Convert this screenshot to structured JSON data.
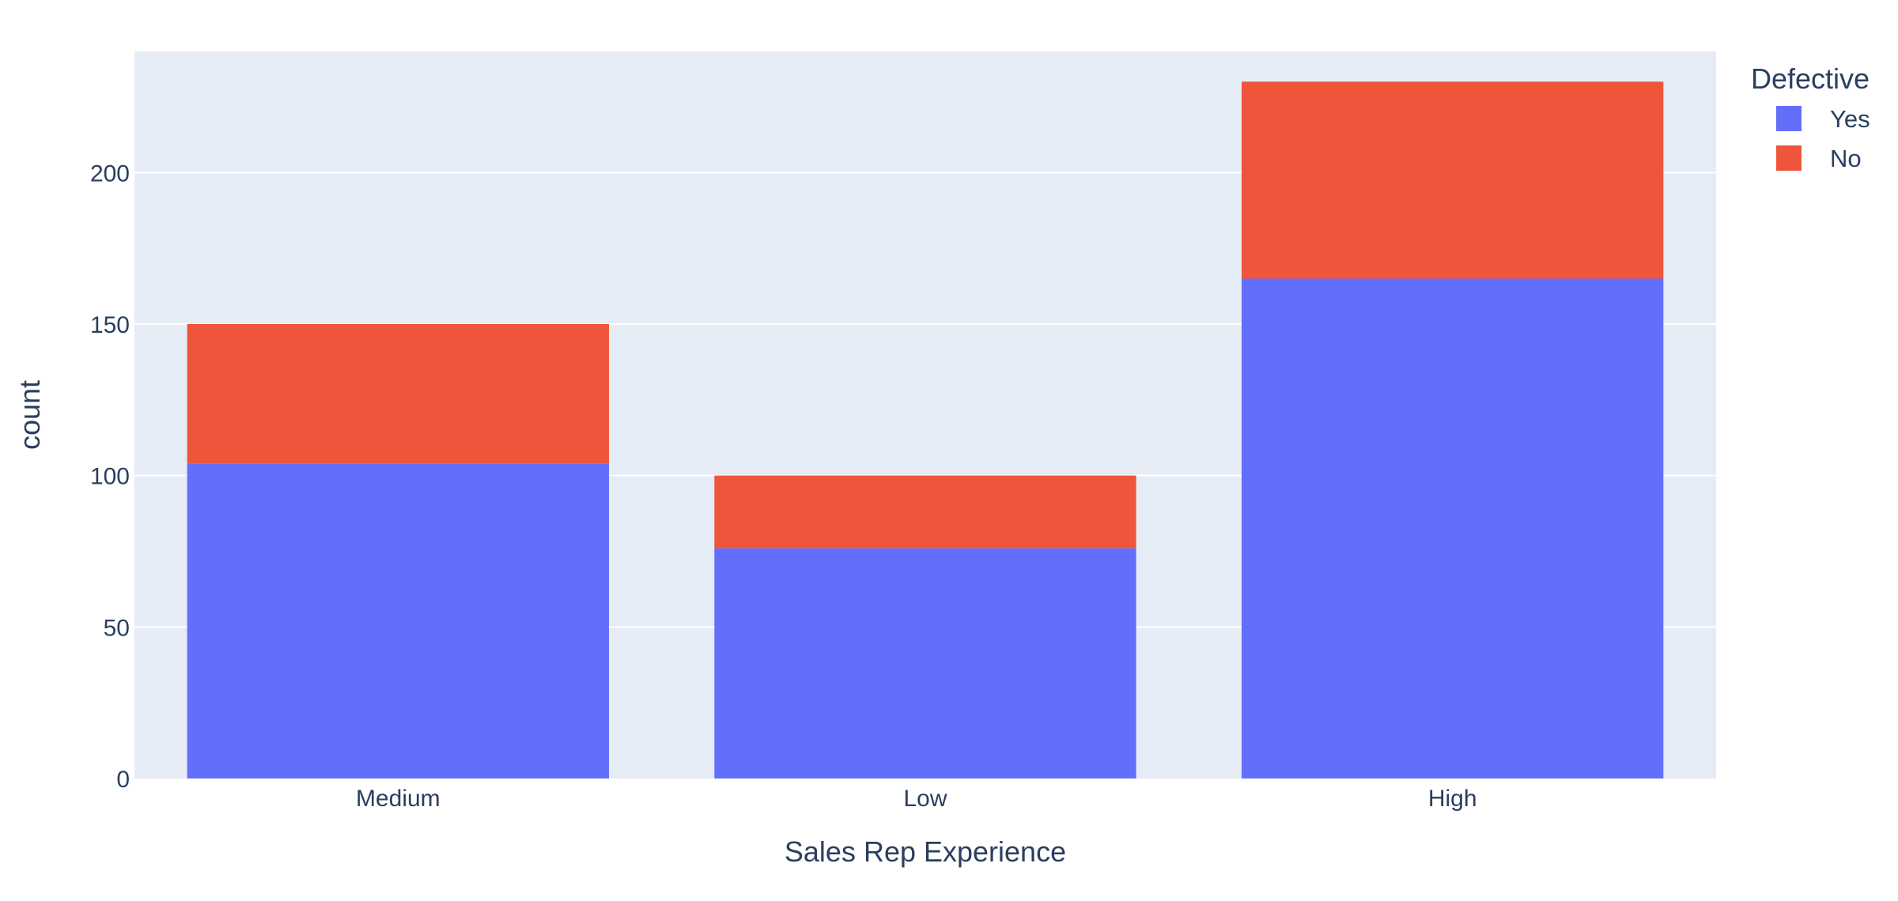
{
  "chart_data": {
    "type": "bar",
    "barmode": "stack",
    "categories": [
      "Medium",
      "Low",
      "High"
    ],
    "series": [
      {
        "name": "Yes",
        "values": [
          104,
          76,
          165
        ],
        "color": "#636efa"
      },
      {
        "name": "No",
        "values": [
          46,
          24,
          65
        ],
        "color": "#ef553b"
      }
    ],
    "xlabel": "Sales Rep Experience",
    "ylabel": "count",
    "ylim": [
      0,
      240
    ],
    "yticks": [
      0,
      50,
      100,
      150,
      200
    ],
    "grid": true,
    "legend": {
      "title": "Defective",
      "placement": "top-right"
    },
    "plot_background": "#e5ecf6"
  }
}
